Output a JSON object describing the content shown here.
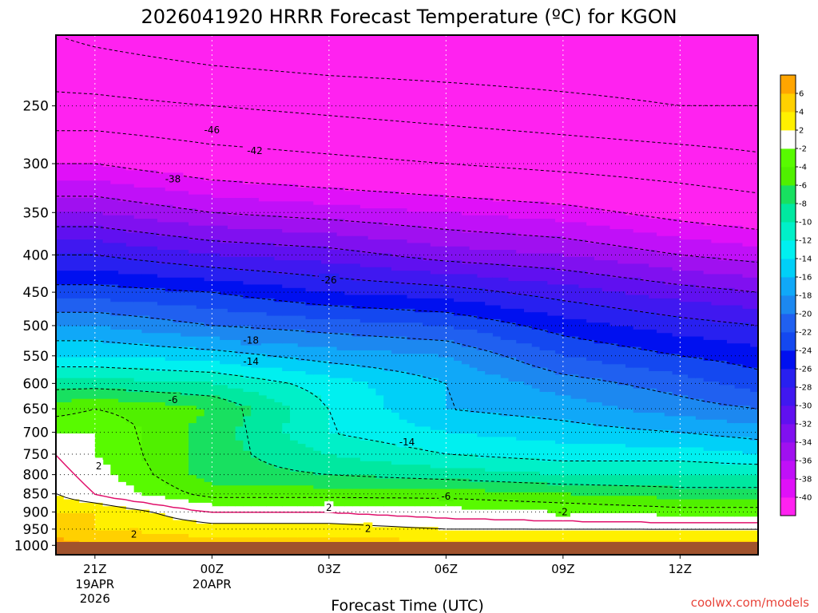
{
  "title": "2026041920 HRRR Forecast Temperature (ºC) for KGON",
  "credit": "coolwx.com/models",
  "colors": {
    "ground": "#a0522d",
    "freezing_line": "#e0106b",
    "frame": "#000000"
  },
  "chart_data": {
    "type": "heatmap",
    "title": "2026041920 HRRR Forecast Temperature (ºC) for KGON",
    "xlabel": "Forecast Time (UTC)",
    "ylabel": "",
    "x_range_hours": [
      -1,
      17
    ],
    "y_range_hPa": [
      200,
      1030
    ],
    "y_scale": "log",
    "grid": true,
    "x_ticks": [
      {
        "hour": 0,
        "label": "21Z",
        "sub1": "19APR",
        "sub2": "2026"
      },
      {
        "hour": 3,
        "label": "00Z",
        "sub1": "20APR",
        "sub2": ""
      },
      {
        "hour": 6,
        "label": "03Z",
        "sub1": "",
        "sub2": ""
      },
      {
        "hour": 9,
        "label": "06Z",
        "sub1": "",
        "sub2": ""
      },
      {
        "hour": 12,
        "label": "09Z",
        "sub1": "",
        "sub2": ""
      },
      {
        "hour": 15,
        "label": "12Z",
        "sub1": "",
        "sub2": ""
      }
    ],
    "y_ticks": [
      250,
      300,
      350,
      400,
      450,
      500,
      550,
      600,
      650,
      700,
      750,
      800,
      850,
      900,
      950,
      1000
    ],
    "colorbar": {
      "levels": [
        -40,
        -38,
        -36,
        -34,
        -32,
        -30,
        -28,
        -26,
        -24,
        -22,
        -20,
        -18,
        -16,
        -14,
        -12,
        -10,
        -8,
        -6,
        -4,
        -2,
        2,
        4,
        6,
        8
      ],
      "colors": [
        "#ff22f0",
        "#e010f8",
        "#c010f8",
        "#a010f0",
        "#8010f0",
        "#6010f0",
        "#4018f0",
        "#2820f0",
        "#0010f0",
        "#1448f0",
        "#2060f0",
        "#1c88f0",
        "#10a8f8",
        "#00d0f8",
        "#00f0f0",
        "#00f0c8",
        "#00e8a0",
        "#18e060",
        "#50f000",
        "#58fa00",
        "#ffffff",
        "#fff000",
        "#ffd000",
        "#ffa500"
      ]
    },
    "times": [
      -1,
      0,
      3,
      6,
      9,
      12,
      15,
      17
    ],
    "temperature_profiles": [
      [
        [
          200,
          -52
        ],
        [
          250,
          -47
        ],
        [
          300,
          -40
        ],
        [
          350,
          -34
        ],
        [
          400,
          -28
        ],
        [
          450,
          -23
        ],
        [
          500,
          -18
        ],
        [
          550,
          -14
        ],
        [
          600,
          -9
        ],
        [
          650,
          -5
        ],
        [
          700,
          -2
        ],
        [
          750,
          0
        ],
        [
          800,
          1
        ],
        [
          850,
          2
        ],
        [
          900,
          4
        ],
        [
          950,
          5
        ],
        [
          1000,
          7
        ],
        [
          1030,
          8
        ]
      ],
      [
        [
          200,
          -53
        ],
        [
          250,
          -47
        ],
        [
          300,
          -40
        ],
        [
          350,
          -34
        ],
        [
          400,
          -28
        ],
        [
          450,
          -23
        ],
        [
          500,
          -18
        ],
        [
          550,
          -14
        ],
        [
          600,
          -9
        ],
        [
          650,
          -4
        ],
        [
          700,
          -2
        ],
        [
          750,
          -2
        ],
        [
          800,
          -1
        ],
        [
          850,
          0
        ],
        [
          900,
          4
        ],
        [
          950,
          4
        ],
        [
          1000,
          6
        ],
        [
          1030,
          7
        ]
      ],
      [
        [
          200,
          -55
        ],
        [
          250,
          -48
        ],
        [
          300,
          -42
        ],
        [
          350,
          -36
        ],
        [
          400,
          -30
        ],
        [
          450,
          -24
        ],
        [
          500,
          -20
        ],
        [
          550,
          -15
        ],
        [
          600,
          -10
        ],
        [
          650,
          -6
        ],
        [
          700,
          -7
        ],
        [
          750,
          -7
        ],
        [
          800,
          -7
        ],
        [
          850,
          -5
        ],
        [
          900,
          0
        ],
        [
          950,
          3
        ],
        [
          1000,
          5
        ],
        [
          1030,
          6
        ]
      ],
      [
        [
          200,
          -56
        ],
        [
          250,
          -49
        ],
        [
          300,
          -43
        ],
        [
          350,
          -37
        ],
        [
          400,
          -31
        ],
        [
          450,
          -26
        ],
        [
          500,
          -21
        ],
        [
          550,
          -17
        ],
        [
          600,
          -13
        ],
        [
          650,
          -12
        ],
        [
          700,
          -12
        ],
        [
          750,
          -10
        ],
        [
          800,
          -8
        ],
        [
          850,
          -5
        ],
        [
          900,
          0
        ],
        [
          950,
          3
        ],
        [
          1000,
          5
        ],
        [
          1030,
          6
        ]
      ],
      [
        [
          200,
          -56
        ],
        [
          250,
          -50
        ],
        [
          300,
          -44
        ],
        [
          350,
          -38
        ],
        [
          400,
          -33
        ],
        [
          450,
          -27
        ],
        [
          500,
          -22
        ],
        [
          550,
          -18
        ],
        [
          600,
          -16
        ],
        [
          650,
          -16
        ],
        [
          700,
          -14
        ],
        [
          750,
          -12
        ],
        [
          800,
          -9
        ],
        [
          850,
          -5
        ],
        [
          900,
          -1
        ],
        [
          950,
          2
        ],
        [
          1000,
          5
        ],
        [
          1030,
          6
        ]
      ],
      [
        [
          200,
          -56
        ],
        [
          250,
          -51
        ],
        [
          300,
          -45
        ],
        [
          350,
          -39
        ],
        [
          400,
          -34
        ],
        [
          450,
          -29
        ],
        [
          500,
          -25
        ],
        [
          550,
          -22
        ],
        [
          600,
          -19
        ],
        [
          650,
          -17
        ],
        [
          700,
          -15
        ],
        [
          750,
          -13
        ],
        [
          800,
          -10
        ],
        [
          850,
          -6
        ],
        [
          900,
          -2
        ],
        [
          950,
          2
        ],
        [
          1000,
          5
        ],
        [
          1030,
          6
        ]
      ],
      [
        [
          200,
          -56
        ],
        [
          250,
          -52
        ],
        [
          300,
          -46
        ],
        [
          350,
          -41
        ],
        [
          400,
          -36
        ],
        [
          450,
          -31
        ],
        [
          500,
          -27
        ],
        [
          550,
          -24
        ],
        [
          600,
          -21
        ],
        [
          650,
          -19
        ],
        [
          700,
          -16
        ],
        [
          750,
          -13
        ],
        [
          800,
          -10
        ],
        [
          850,
          -7
        ],
        [
          900,
          -3
        ],
        [
          950,
          2
        ],
        [
          1000,
          5
        ],
        [
          1030,
          6
        ]
      ],
      [
        [
          200,
          -56
        ],
        [
          250,
          -52
        ],
        [
          300,
          -47
        ],
        [
          350,
          -42
        ],
        [
          400,
          -37
        ],
        [
          450,
          -32
        ],
        [
          500,
          -28
        ],
        [
          550,
          -25
        ],
        [
          600,
          -23
        ],
        [
          650,
          -20
        ],
        [
          700,
          -17
        ],
        [
          750,
          -14
        ],
        [
          800,
          -10
        ],
        [
          850,
          -7
        ],
        [
          900,
          -3
        ],
        [
          950,
          2
        ],
        [
          1000,
          5
        ],
        [
          1030,
          6
        ]
      ]
    ],
    "contour_labels": [
      {
        "text": "-46",
        "hour": 3.0,
        "p": 270
      },
      {
        "text": "-42",
        "hour": 4.1,
        "p": 288
      },
      {
        "text": "-38",
        "hour": 2.0,
        "p": 315
      },
      {
        "text": "-26",
        "hour": 6.0,
        "p": 433
      },
      {
        "text": "-18",
        "hour": 4.0,
        "p": 524
      },
      {
        "text": "-14",
        "hour": 4.0,
        "p": 560
      },
      {
        "text": "-6",
        "hour": 2.0,
        "p": 632
      },
      {
        "text": "-14",
        "hour": 8.0,
        "p": 722
      },
      {
        "text": "2",
        "hour": 0.1,
        "p": 779
      },
      {
        "text": "-6",
        "hour": 9.0,
        "p": 857
      },
      {
        "text": "2",
        "hour": 6.0,
        "p": 888
      },
      {
        "text": "-2",
        "hour": 12.0,
        "p": 900
      },
      {
        "text": "2",
        "hour": 7.0,
        "p": 949
      },
      {
        "text": "2",
        "hour": 1.0,
        "p": 966
      }
    ]
  }
}
